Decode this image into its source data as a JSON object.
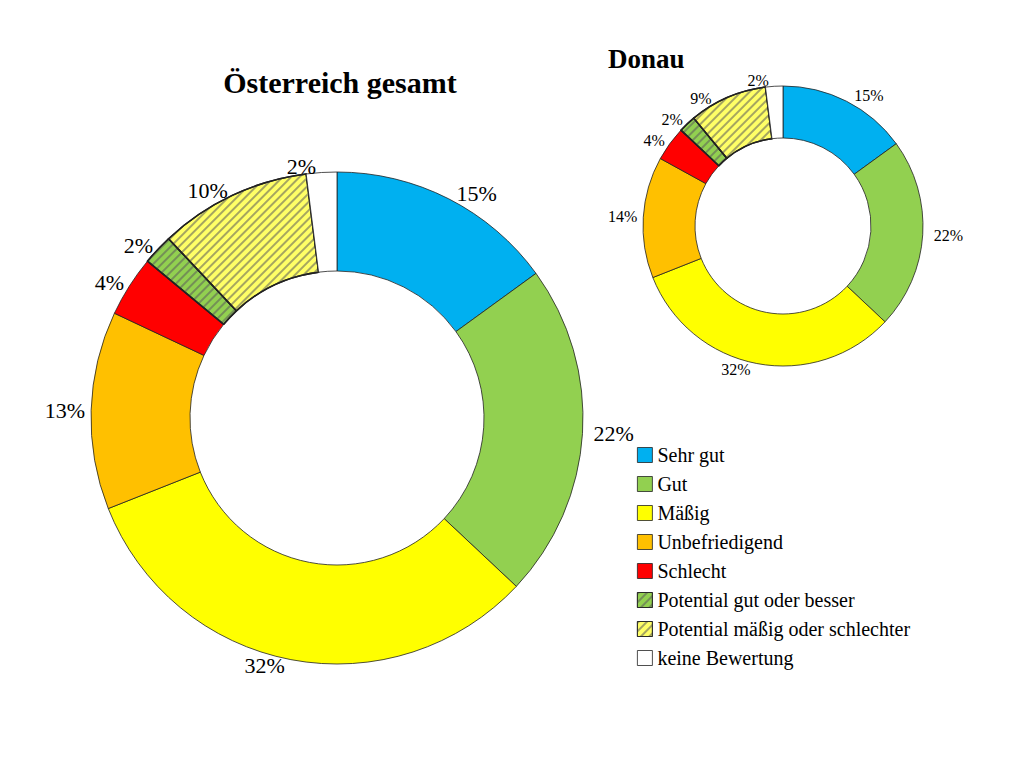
{
  "chart_data": [
    {
      "type": "pie",
      "title": "Österreich gesamt",
      "categories": [
        "Sehr gut",
        "Gut",
        "Mäßig",
        "Unbefriedigend",
        "Schlecht",
        "Potential gut oder besser",
        "Potential mäßig oder schlechter",
        "keine Bewertung"
      ],
      "values": [
        15,
        22,
        32,
        13,
        4,
        2,
        10,
        2
      ],
      "value_labels": [
        "15%",
        "22%",
        "32%",
        "13%",
        "4%",
        "2%",
        "10%",
        "2%"
      ],
      "colors": [
        "#00b0f0",
        "#92d050",
        "#ffff00",
        "#ffc000",
        "#ff0000",
        "#92d050",
        "#ffff66",
        "#ffffff"
      ],
      "data_labels": true,
      "legend": "lower right"
    },
    {
      "type": "pie",
      "title": "Donau",
      "categories": [
        "Sehr gut",
        "Gut",
        "Mäßig",
        "Unbefriedigend",
        "Schlecht",
        "Potential gut oder besser",
        "Potential mäßig oder schlechter",
        "keine Bewertung"
      ],
      "values": [
        15,
        22,
        32,
        14,
        4,
        2,
        9,
        2
      ],
      "value_labels": [
        "15%",
        "22%",
        "32%",
        "14%",
        "4%",
        "2%",
        "9%",
        "2%"
      ],
      "colors": [
        "#00b0f0",
        "#92d050",
        "#ffff00",
        "#ffc000",
        "#ff0000",
        "#92d050",
        "#ffff66",
        "#ffffff"
      ],
      "data_labels": true
    }
  ]
}
